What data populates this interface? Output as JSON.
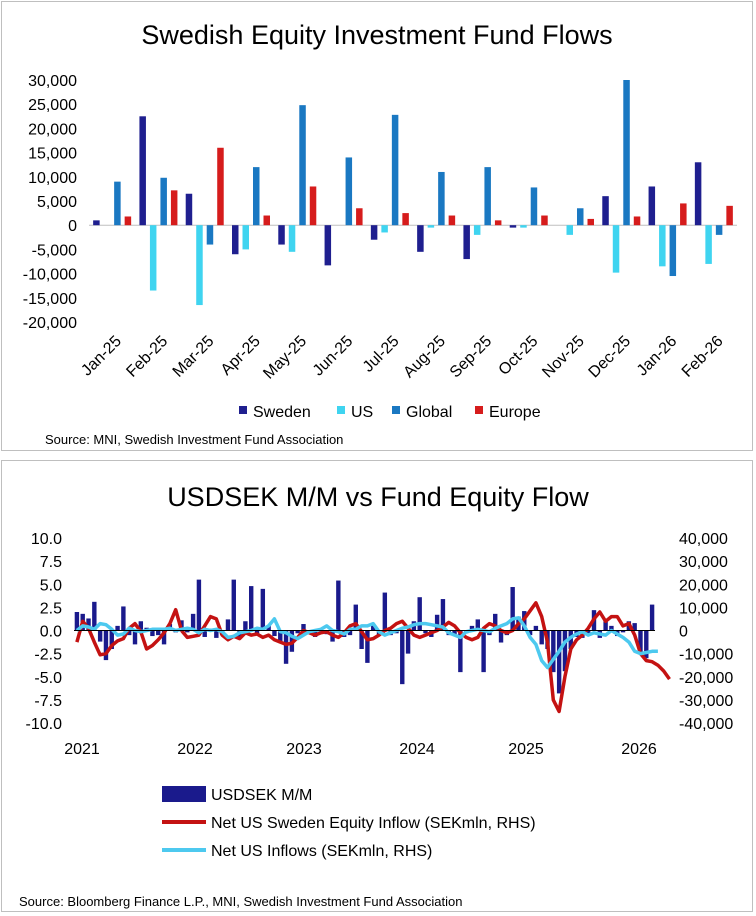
{
  "chart_data": [
    {
      "type": "bar",
      "title": "Swedish Equity Investment Fund Flows",
      "categories": [
        "Jan-25",
        "Feb-25",
        "Mar-25",
        "Apr-25",
        "May-25",
        "Jun-25",
        "Jul-25",
        "Aug-25",
        "Sep-25",
        "Oct-25",
        "Nov-25",
        "Dec-25",
        "Jan-26",
        "Feb-26"
      ],
      "ylim": [
        -20000,
        30000
      ],
      "y_ticks": [
        30000,
        25000,
        20000,
        15000,
        10000,
        5000,
        0,
        -5000,
        -10000,
        -15000,
        -20000
      ],
      "y_tick_labels": [
        "30,000",
        "25,000",
        "20,000",
        "15,000",
        "10,000",
        "5,000",
        "0",
        "-5,000",
        "-10,000",
        "-15,000",
        "-20,000"
      ],
      "legend_position": "bottom",
      "series": [
        {
          "name": "Sweden",
          "color": "#1f1f8f",
          "values": [
            1000,
            22500,
            6500,
            -6000,
            -4000,
            -8300,
            -3000,
            -5500,
            -7000,
            -500,
            0,
            6000,
            8000,
            13000
          ]
        },
        {
          "name": "US",
          "color": "#3fd4f0",
          "values": [
            0,
            -13500,
            -16500,
            -5000,
            -5500,
            0,
            -1500,
            -500,
            -2000,
            -500,
            -2000,
            -9800,
            -8500,
            -8000
          ]
        },
        {
          "name": "Global",
          "color": "#1a78c2",
          "values": [
            9000,
            9800,
            -4000,
            12000,
            24800,
            14000,
            22800,
            11000,
            12000,
            7800,
            3500,
            30000,
            -10500,
            -2000
          ]
        },
        {
          "name": "Europe",
          "color": "#d61c1c",
          "values": [
            1800,
            7200,
            16000,
            2000,
            8000,
            3500,
            2500,
            2000,
            1000,
            2000,
            1300,
            1800,
            4500,
            4000
          ]
        }
      ],
      "source": "Source: MNI,  Swedish Investment Fund Association"
    },
    {
      "type": "bar",
      "title": "USDSEK M/M vs Fund Equity Flow",
      "x_tick_labels": [
        "2021",
        "2022",
        "2023",
        "2024",
        "2025",
        "2026"
      ],
      "ylim_left": [
        -10,
        10
      ],
      "left_tick_labels": [
        "10.0",
        "7.5",
        "5.0",
        "2.5",
        "0.0",
        "-2.5",
        "-5.0",
        "-7.5",
        "-10.0"
      ],
      "ylim_right": [
        -40000,
        40000
      ],
      "right_tick_labels": [
        "40,000",
        "30,000",
        "20,000",
        "10,000",
        "0",
        "-10,000",
        "-20,000",
        "-30,000",
        "-40,000"
      ],
      "legend_position": "bottom",
      "series": [
        {
          "name": "USDSEK M/M",
          "kind": "bar",
          "axis": "left",
          "color": "#1a1a8c",
          "values": [
            2.0,
            1.8,
            1.3,
            3.1,
            -1.2,
            -3.2,
            -2.0,
            0.5,
            2.6,
            -0.5,
            -1.5,
            1.0,
            0.3,
            -0.6,
            -0.5,
            -1.5,
            0.7,
            -0.2,
            1.1,
            -0.2,
            1.8,
            5.5,
            -0.7,
            0.2,
            -0.8,
            -0.5,
            1.2,
            5.5,
            -0.7,
            1.0,
            4.8,
            -0.5,
            4.5,
            0.5,
            -0.6,
            -1.2,
            -3.6,
            -2.3,
            -0.3,
            0.7,
            -0.4,
            -0.7,
            -0.3,
            -0.4,
            -1.2,
            5.4,
            -0.7,
            -0.5,
            2.8,
            -2.0,
            -3.5,
            0.6,
            -0.5,
            4.1,
            -0.5,
            -0.3,
            -5.8,
            -2.5,
            1.0,
            3.6,
            -0.3,
            -0.7,
            1.7,
            3.4,
            -0.5,
            -0.5,
            -4.5,
            -0.3,
            0.5,
            1.2,
            -4.5,
            -0.5,
            1.8,
            -1.3,
            -0.5,
            4.7,
            1.5,
            2.1,
            -0.5,
            0.5,
            -1.5,
            -2.0,
            -4.5,
            -6.8,
            -4.4,
            -2.0,
            -0.7,
            -0.8,
            -0.5,
            2.2,
            -0.8,
            1.0,
            0.5,
            -0.6,
            -0.2,
            1.0,
            0.8,
            -2.3,
            -3.0,
            2.8
          ]
        },
        {
          "name": "Net US Sweden Equity Inflow (SEKmln, RHS)",
          "kind": "line",
          "axis": "right",
          "color": "#c41212",
          "values": [
            -5000,
            4000,
            1000,
            -5000,
            -10500,
            -10000,
            -6500,
            -4500,
            -3500,
            1000,
            3000,
            -500,
            -8000,
            -6500,
            -4000,
            -1000,
            3000,
            9000,
            0,
            -3000,
            -2500,
            -2000,
            2000,
            6000,
            5000,
            -2000,
            -4000,
            -2500,
            -3500,
            -1000,
            -2000,
            -1500,
            -3000,
            -2000,
            -4000,
            -5000,
            -6000,
            -5500,
            -3000,
            0,
            -1000,
            -2000,
            -1000,
            -500,
            -2000,
            -3000,
            -1000,
            2000,
            3000,
            -500,
            -4000,
            -3500,
            -2000,
            0,
            1000,
            3000,
            4000,
            1000,
            -2000,
            -3000,
            -2000,
            -1000,
            0,
            1500,
            3500,
            2000,
            -1000,
            -3000,
            -4000,
            -3000,
            1000,
            3000,
            2000,
            0,
            -1000,
            0,
            3000,
            5000,
            8500,
            12000,
            6000,
            -5000,
            -30000,
            -35000,
            -20000,
            -8000,
            -4000,
            -2000,
            1000,
            5000,
            8000,
            4000,
            6000,
            6000,
            2000,
            3000,
            -2000,
            -10000,
            -13000,
            -13500,
            -15000,
            -17500,
            -21000
          ]
        },
        {
          "name": "Net US Inflows (SEKmln, RHS)",
          "kind": "line",
          "axis": "right",
          "color": "#4dc9ef",
          "values": [
            0,
            2000,
            1500,
            500,
            3000,
            2500,
            500,
            -2000,
            -1500,
            1000,
            0,
            -500,
            0,
            500,
            500,
            500,
            1000,
            0,
            500,
            1000,
            500,
            -1000,
            500,
            0,
            500,
            -500,
            -3000,
            -2500,
            -1000,
            -500,
            0,
            1000,
            500,
            2000,
            5000,
            -500,
            -1000,
            -2500,
            -3500,
            -2000,
            -500,
            0,
            500,
            2000,
            0,
            -500,
            -1500,
            500,
            500,
            2000,
            2000,
            3000,
            -500,
            -2000,
            -1000,
            0,
            1000,
            1500,
            2500,
            3000,
            3000,
            2500,
            2000,
            1500,
            -1000,
            -2000,
            -3000,
            -500,
            0,
            500,
            0,
            -500,
            1000,
            2000,
            3000,
            5000,
            5500,
            2000,
            -3000,
            -6000,
            -13000,
            -16000,
            -12500,
            -9000,
            -5000,
            -3000,
            -1500,
            -500,
            -2000,
            -1000,
            -1500,
            -2000,
            0,
            -1500,
            -3000,
            -5000,
            -9000,
            -10000,
            -9500,
            -9000,
            -9000
          ]
        }
      ],
      "source": "Source: Bloomberg Finance L.P., MNI,  Swedish Investment Fund Association"
    }
  ]
}
